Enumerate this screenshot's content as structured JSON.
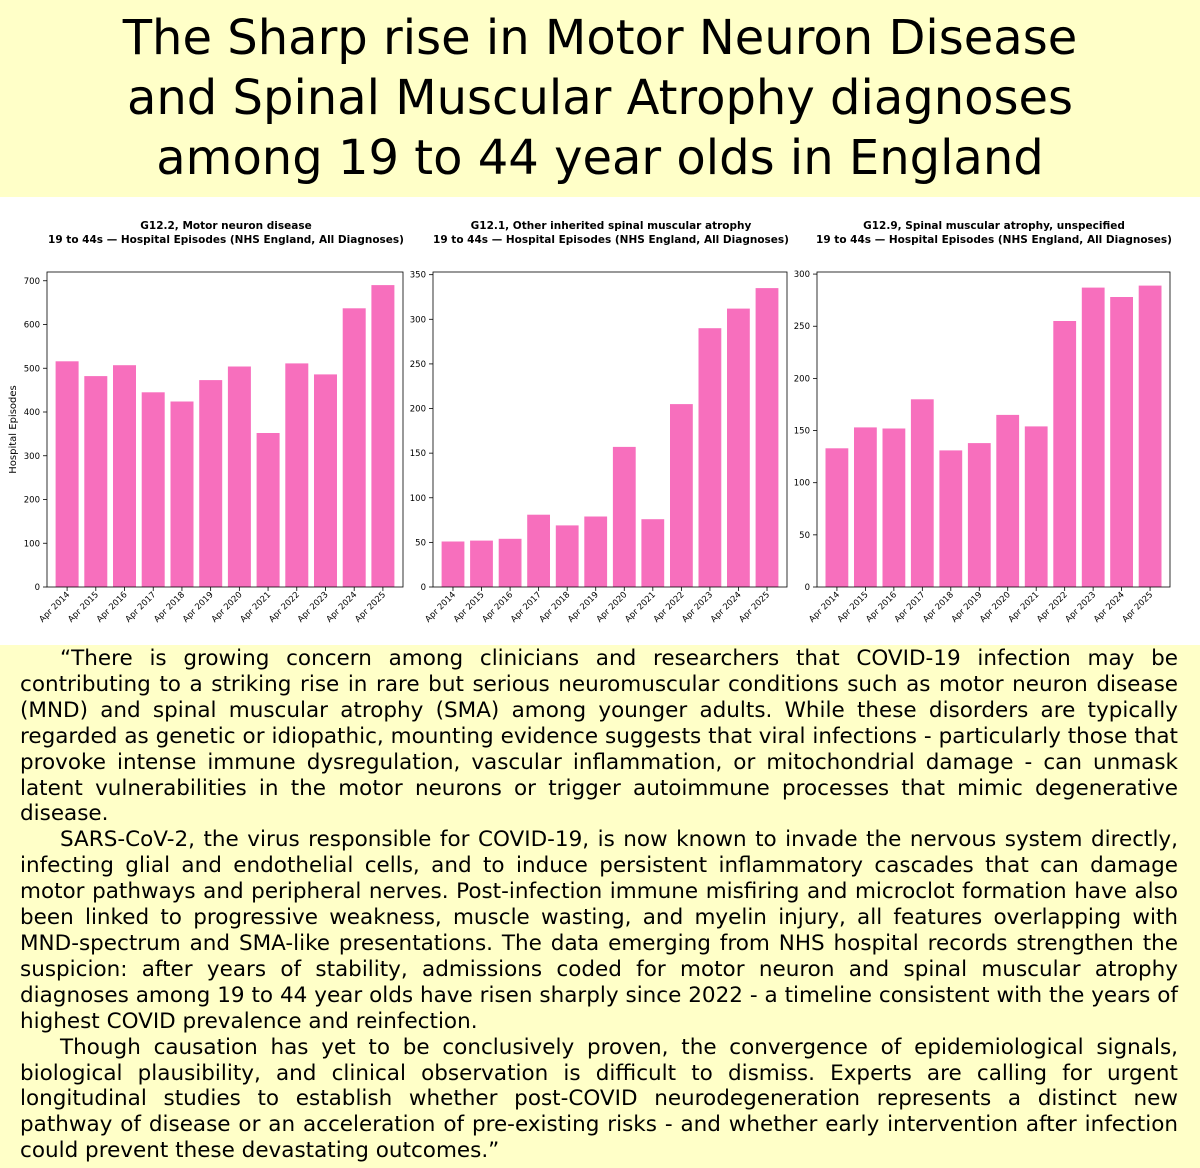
{
  "title": {
    "line1": "The Sharp rise in Motor Neuron Disease",
    "line2": "and Spinal Muscular Atrophy diagnoses",
    "line3": "among 19 to 44 year olds in England"
  },
  "colors": {
    "bar": "#f76fbd",
    "background": "#ffffc8",
    "panel": "#ffffff"
  },
  "chart_data": [
    {
      "type": "bar",
      "title": "G12.2, Motor neuron disease",
      "subtitle": "19 to 44s — Hospital Episodes (NHS England, All Diagnoses)",
      "ylabel": "Hospital Episodes",
      "xlabel": "",
      "ylim": [
        0,
        720
      ],
      "yticks": [
        0,
        100,
        200,
        300,
        400,
        500,
        600,
        700
      ],
      "categories": [
        "Apr 2014",
        "Apr 2015",
        "Apr 2016",
        "Apr 2017",
        "Apr 2018",
        "Apr 2019",
        "Apr 2020",
        "Apr 2021",
        "Apr 2022",
        "Apr 2023",
        "Apr 2024",
        "Apr 2025"
      ],
      "values": [
        516,
        482,
        507,
        445,
        424,
        473,
        504,
        352,
        511,
        486,
        637,
        690
      ]
    },
    {
      "type": "bar",
      "title": "G12.1, Other inherited spinal muscular atrophy",
      "subtitle": "19 to 44s — Hospital Episodes (NHS England, All Diagnoses)",
      "ylabel": "",
      "xlabel": "",
      "ylim": [
        0,
        353
      ],
      "yticks": [
        0,
        50,
        100,
        150,
        200,
        250,
        300,
        350
      ],
      "categories": [
        "Apr 2014",
        "Apr 2015",
        "Apr 2016",
        "Apr 2017",
        "Apr 2018",
        "Apr 2019",
        "Apr 2020",
        "Apr 2021",
        "Apr 2022",
        "Apr 2023",
        "Apr 2024",
        "Apr 2025"
      ],
      "values": [
        51,
        52,
        54,
        81,
        69,
        79,
        157,
        76,
        205,
        290,
        312,
        335
      ]
    },
    {
      "type": "bar",
      "title": "G12.9, Spinal muscular atrophy, unspecified",
      "subtitle": "19 to 44s — Hospital Episodes (NHS England, All Diagnoses)",
      "ylabel": "",
      "xlabel": "",
      "ylim": [
        0,
        302
      ],
      "yticks": [
        0,
        50,
        100,
        150,
        200,
        250,
        300
      ],
      "categories": [
        "Apr 2014",
        "Apr 2015",
        "Apr 2016",
        "Apr 2017",
        "Apr 2018",
        "Apr 2019",
        "Apr 2020",
        "Apr 2021",
        "Apr 2022",
        "Apr 2023",
        "Apr 2024",
        "Apr 2025"
      ],
      "values": [
        133,
        153,
        152,
        180,
        131,
        138,
        165,
        154,
        255,
        287,
        278,
        289
      ]
    }
  ],
  "body": {
    "p1": "“There is growing concern among clinicians and researchers that COVID-19 infection may be contributing to a striking rise in rare but serious neuromuscular conditions such as motor neuron disease (MND) and spinal muscular atrophy (SMA) among younger adults. While these disorders are typically regarded as genetic or idiopathic, mounting evidence suggests that viral infections - particularly those that provoke intense immune dysregulation, vascular inflammation, or mitochondrial damage - can unmask latent vulnerabilities in the motor neurons or trigger autoimmune processes that mimic degenerative disease.",
    "p2": "SARS-CoV-2, the virus responsible for COVID-19, is now known to invade the nervous system directly, infecting glial and endothelial cells, and to induce persistent inflammatory cascades that can damage motor pathways and peripheral nerves. Post-infection immune misfiring and microclot formation have also been linked to progressive weakness, muscle wasting, and myelin injury, all features overlapping with MND-spectrum and SMA-like presentations. The data emerging from NHS hospital records strengthen the suspicion: after years of stability, admissions coded for motor neuron and spinal muscular atrophy diagnoses among 19 to 44 year olds have risen sharply since 2022 - a timeline consistent with the years of highest COVID prevalence and reinfection.",
    "p3": "Though causation has yet to be conclusively proven, the convergence of epidemiological signals, biological plausibility, and clinical observation is difficult to dismiss. Experts are calling for urgent longitudinal studies to establish whether post-COVID neurodegeneration represents a distinct new pathway of disease or an acceleration of pre-existing risks - and whether early intervention after infection could prevent these devastating outcomes.”"
  }
}
